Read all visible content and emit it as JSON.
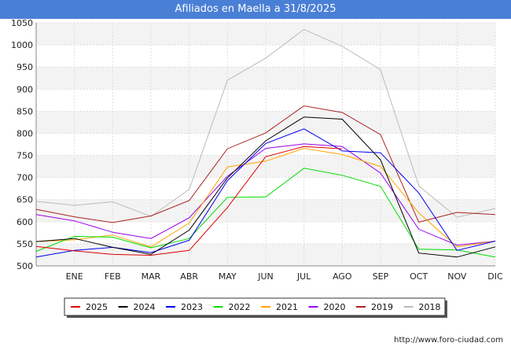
{
  "chart_data": {
    "type": "line",
    "title": "Afiliados en Maella a 31/8/2025",
    "categories": [
      "",
      "ENE",
      "FEB",
      "MAR",
      "ABR",
      "MAY",
      "JUN",
      "JUL",
      "AGO",
      "SEP",
      "OCT",
      "NOV",
      "DIC"
    ],
    "ylim": [
      500,
      1050
    ],
    "yticks": [
      500,
      550,
      600,
      650,
      700,
      750,
      800,
      850,
      900,
      950,
      1000,
      1050
    ],
    "grid": true,
    "legend_position": "bottom",
    "series": [
      {
        "name": "2025",
        "color": "#dd0000",
        "values": [
          544,
          534,
          526,
          524,
          535,
          632,
          747,
          770,
          765,
          null,
          null,
          null,
          null
        ]
      },
      {
        "name": "2024",
        "color": "#000000",
        "values": [
          555,
          562,
          542,
          526,
          581,
          699,
          783,
          837,
          832,
          740,
          529,
          520,
          543
        ]
      },
      {
        "name": "2023",
        "color": "#0000ee",
        "values": [
          520,
          535,
          542,
          530,
          558,
          693,
          777,
          810,
          760,
          756,
          665,
          535,
          556
        ]
      },
      {
        "name": "2022",
        "color": "#00dd00",
        "values": [
          533,
          567,
          565,
          541,
          562,
          655,
          656,
          721,
          705,
          680,
          538,
          536,
          520
        ]
      },
      {
        "name": "2021",
        "color": "#ffa500",
        "values": [
          555,
          559,
          570,
          543,
          597,
          724,
          737,
          766,
          752,
          725,
          620,
          543,
          556
        ]
      },
      {
        "name": "2020",
        "color": "#9900ee",
        "values": [
          616,
          602,
          576,
          562,
          609,
          703,
          766,
          776,
          770,
          710,
          583,
          547,
          556
        ]
      },
      {
        "name": "2019",
        "color": "#aa2222",
        "values": [
          628,
          611,
          598,
          613,
          648,
          765,
          801,
          862,
          847,
          797,
          599,
          621,
          616
        ]
      },
      {
        "name": "2018",
        "color": "#bbbbbb",
        "values": [
          646,
          637,
          645,
          612,
          673,
          920,
          970,
          1035,
          997,
          944,
          681,
          610,
          630
        ]
      }
    ]
  },
  "footer": "http://www.foro-ciudad.com"
}
